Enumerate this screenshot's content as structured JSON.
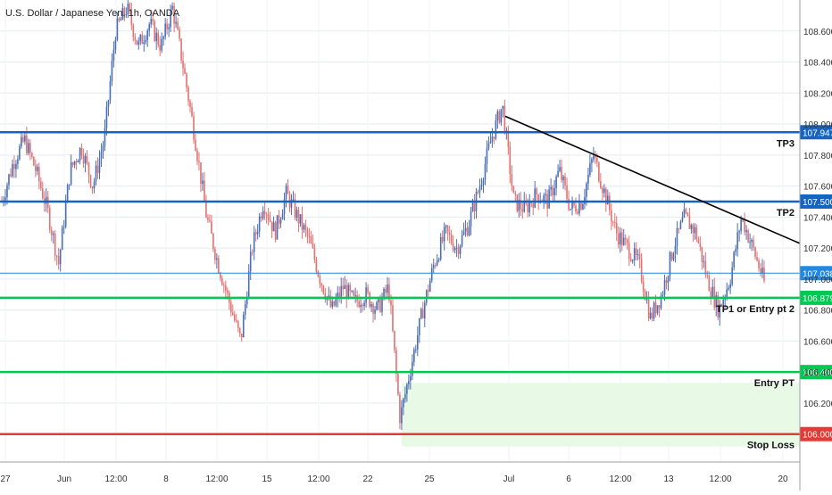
{
  "header": {
    "symbol_label": "U.S. Dollar / Japanese Yen, 1h, OANDA"
  },
  "chart_data": {
    "type": "candlestick",
    "title": "U.S. Dollar / Japanese Yen, 1h, OANDA",
    "ylim": [
      105.82,
      108.8
    ],
    "y_ticks": [
      106.2,
      106.4,
      106.6,
      106.8,
      107.0,
      107.2,
      107.4,
      107.6,
      107.8,
      108.0,
      108.2,
      108.4,
      108.6
    ],
    "y_tick_labels": [
      "106.200",
      "106.400",
      "106.600",
      "106.800",
      "107.000",
      "107.200",
      "107.400",
      "107.600",
      "107.800",
      "108.000",
      "108.200",
      "108.400",
      "108.600"
    ],
    "x_ticks": [
      "27",
      "Jun",
      "12:00",
      "8",
      "12:00",
      "15",
      "12:00",
      "22",
      "25",
      "Jul",
      "6",
      "12:00",
      "13",
      "12:00",
      "20"
    ],
    "horizontal_lines": [
      {
        "price": 107.947,
        "price_label": "107.947",
        "label": "TP3",
        "color": "#1565c0"
      },
      {
        "price": 107.5,
        "price_label": "107.500",
        "label": "TP2",
        "color": "#1565c0"
      },
      {
        "price": 107.038,
        "price_label": "107.038",
        "label": "",
        "color": "#1e88e5"
      },
      {
        "price": 106.879,
        "price_label": "106.879",
        "label": "TP1 or Entry pt 2",
        "color": "#00c853"
      },
      {
        "price": 106.4,
        "price_label": "106.400",
        "label": "Entry PT",
        "color": "#00c853"
      },
      {
        "price": 106.0,
        "price_label": "106.000",
        "label": "Stop Loss",
        "color": "#e53935"
      }
    ],
    "trendline": {
      "from": 108.05,
      "to": 107.23
    },
    "zone": {
      "from": 106.33,
      "to": 105.92,
      "color": "#e8f9e6"
    },
    "candle_colors": {
      "up": "#4a6fb5",
      "down": "#e07272"
    },
    "grid": true,
    "price_path": [
      107.5,
      107.75,
      107.9,
      107.7,
      107.45,
      107.1,
      107.7,
      107.85,
      107.6,
      107.9,
      108.6,
      108.75,
      108.5,
      108.65,
      108.5,
      108.75,
      108.35,
      107.9,
      107.4,
      107.1,
      106.85,
      106.6,
      107.2,
      107.5,
      107.3,
      107.55,
      107.4,
      107.25,
      107.0,
      106.8,
      106.95,
      106.85,
      106.9,
      106.8,
      106.95,
      106.1,
      106.45,
      106.8,
      107.1,
      107.3,
      107.2,
      107.35,
      107.6,
      107.9,
      108.12,
      107.5,
      107.45,
      107.55,
      107.5,
      107.7,
      107.45,
      107.5,
      107.8,
      107.55,
      107.3,
      107.2,
      107.1,
      106.75,
      106.9,
      107.2,
      107.4,
      107.3,
      107.0,
      106.8,
      107.0,
      107.4,
      107.2,
      106.98
    ]
  }
}
